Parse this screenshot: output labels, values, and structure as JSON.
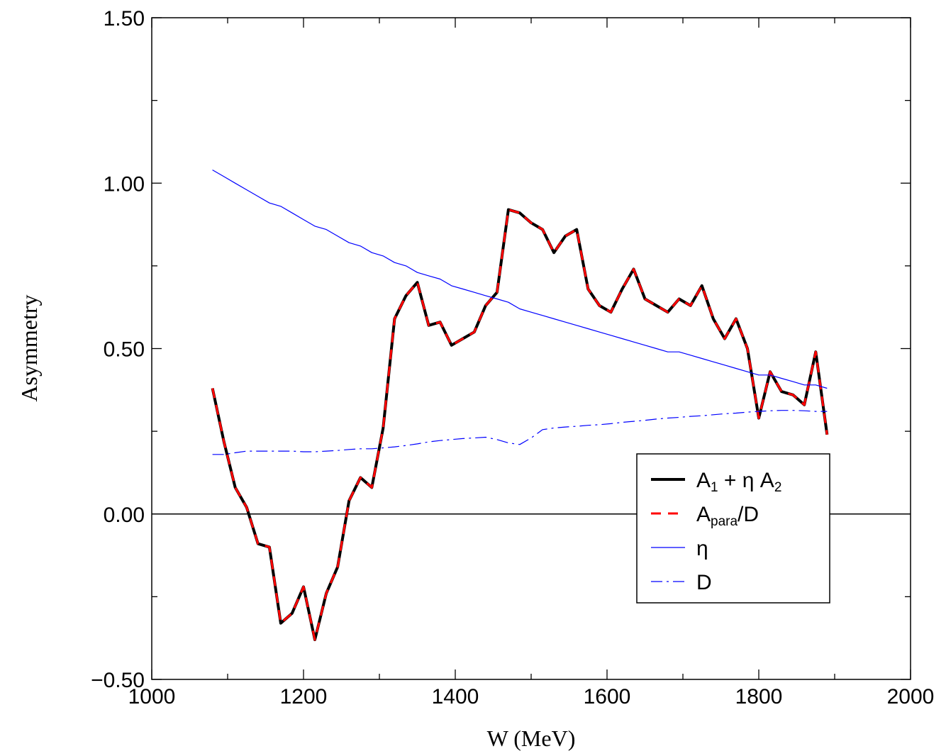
{
  "chart_data": {
    "type": "line",
    "xlabel": "W (MeV)",
    "ylabel": "Asymmetry",
    "xlim": [
      1000,
      2000
    ],
    "ylim": [
      -0.5,
      1.5
    ],
    "xticks": [
      1000,
      1200,
      1400,
      1600,
      1800,
      2000
    ],
    "xtick_labels": [
      "1000",
      "1200",
      "1400",
      "1600",
      "1800",
      "2000"
    ],
    "yticks": [
      -0.5,
      0.0,
      0.5,
      1.0,
      1.5
    ],
    "ytick_labels": [
      "−0.50",
      "0.00",
      "0.50",
      "1.00",
      "1.50"
    ],
    "zero_line": true,
    "grid": false,
    "legend_position": "lower-right",
    "x": [
      1080,
      1095,
      1110,
      1125,
      1140,
      1155,
      1170,
      1185,
      1200,
      1215,
      1230,
      1245,
      1260,
      1275,
      1290,
      1305,
      1320,
      1335,
      1350,
      1365,
      1380,
      1395,
      1410,
      1425,
      1440,
      1455,
      1470,
      1485,
      1500,
      1515,
      1530,
      1545,
      1560,
      1575,
      1590,
      1605,
      1620,
      1635,
      1650,
      1665,
      1680,
      1695,
      1710,
      1725,
      1740,
      1755,
      1770,
      1785,
      1800,
      1815,
      1830,
      1845,
      1860,
      1875,
      1890
    ],
    "series": [
      {
        "name": "A1 + η A2",
        "label_main": "A",
        "label_sub1": "1",
        "label_mid": " + η A",
        "label_sub2": "2",
        "color": "#000000",
        "style": "solid",
        "values": [
          0.38,
          0.22,
          0.08,
          0.02,
          -0.09,
          -0.1,
          -0.33,
          -0.3,
          -0.22,
          -0.38,
          -0.24,
          -0.16,
          0.04,
          0.11,
          0.08,
          0.26,
          0.59,
          0.66,
          0.7,
          0.57,
          0.58,
          0.51,
          0.53,
          0.55,
          0.63,
          0.67,
          0.92,
          0.91,
          0.88,
          0.86,
          0.79,
          0.84,
          0.86,
          0.68,
          0.63,
          0.61,
          0.68,
          0.74,
          0.65,
          0.63,
          0.61,
          0.65,
          0.63,
          0.69,
          0.59,
          0.53,
          0.59,
          0.5,
          0.29,
          0.43,
          0.37,
          0.36,
          0.33,
          0.49,
          0.24
        ]
      },
      {
        "name": "Apara/D",
        "label_main": "A",
        "label_sub1": "para",
        "label_mid": "/D",
        "label_sub2": "",
        "color": "#ff0000",
        "style": "dashed",
        "values": [
          0.38,
          0.22,
          0.08,
          0.02,
          -0.09,
          -0.1,
          -0.33,
          -0.3,
          -0.22,
          -0.38,
          -0.24,
          -0.16,
          0.04,
          0.11,
          0.08,
          0.26,
          0.59,
          0.66,
          0.7,
          0.57,
          0.58,
          0.51,
          0.53,
          0.55,
          0.63,
          0.67,
          0.92,
          0.91,
          0.88,
          0.86,
          0.79,
          0.84,
          0.86,
          0.68,
          0.63,
          0.61,
          0.68,
          0.74,
          0.65,
          0.63,
          0.61,
          0.65,
          0.63,
          0.69,
          0.59,
          0.53,
          0.59,
          0.5,
          0.29,
          0.43,
          0.37,
          0.36,
          0.33,
          0.49,
          0.24
        ]
      },
      {
        "name": "η",
        "label_main": "η",
        "label_sub1": "",
        "label_mid": "",
        "label_sub2": "",
        "color": "#0000ff",
        "style": "solid-thin",
        "values": [
          1.04,
          1.02,
          1.0,
          0.98,
          0.96,
          0.94,
          0.93,
          0.91,
          0.89,
          0.87,
          0.86,
          0.84,
          0.82,
          0.81,
          0.79,
          0.78,
          0.76,
          0.75,
          0.73,
          0.72,
          0.71,
          0.69,
          0.68,
          0.67,
          0.66,
          0.65,
          0.64,
          0.62,
          0.61,
          0.6,
          0.59,
          0.58,
          0.57,
          0.56,
          0.55,
          0.54,
          0.53,
          0.52,
          0.51,
          0.5,
          0.49,
          0.49,
          0.48,
          0.47,
          0.46,
          0.45,
          0.44,
          0.43,
          0.42,
          0.42,
          0.41,
          0.4,
          0.39,
          0.39,
          0.38
        ]
      },
      {
        "name": "D",
        "label_main": "D",
        "label_sub1": "",
        "label_mid": "",
        "label_sub2": "",
        "color": "#0000ff",
        "style": "dashdot-thin",
        "values": [
          0.18,
          0.18,
          0.185,
          0.19,
          0.19,
          0.19,
          0.19,
          0.19,
          0.188,
          0.188,
          0.19,
          0.192,
          0.195,
          0.197,
          0.197,
          0.2,
          0.203,
          0.207,
          0.212,
          0.218,
          0.222,
          0.225,
          0.228,
          0.23,
          0.232,
          0.225,
          0.215,
          0.21,
          0.23,
          0.255,
          0.26,
          0.263,
          0.265,
          0.268,
          0.27,
          0.273,
          0.277,
          0.28,
          0.283,
          0.287,
          0.29,
          0.292,
          0.295,
          0.297,
          0.3,
          0.303,
          0.305,
          0.308,
          0.31,
          0.312,
          0.313,
          0.313,
          0.312,
          0.31,
          0.31
        ]
      }
    ]
  }
}
